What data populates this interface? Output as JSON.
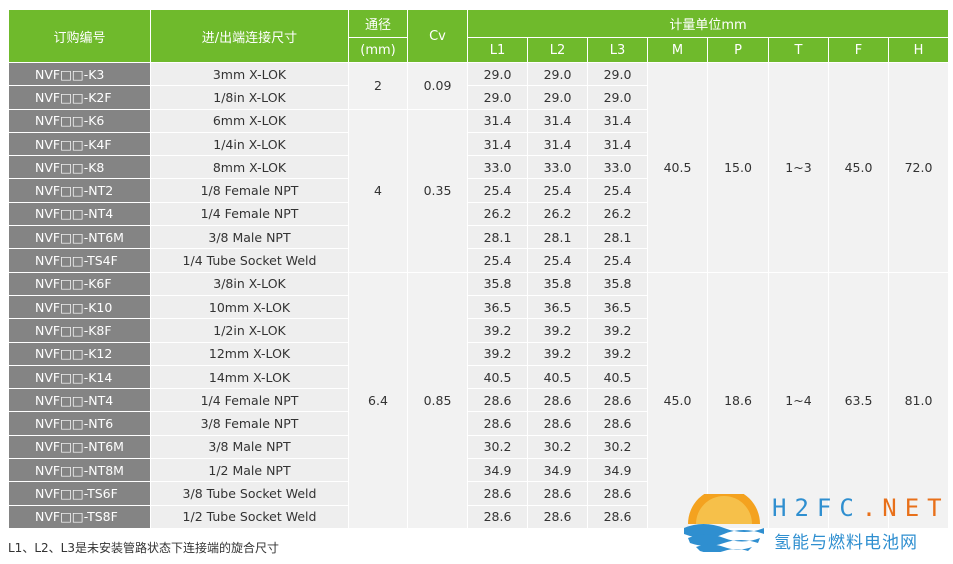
{
  "header": {
    "model_col": "订购编号",
    "conn_col": "进/出端连接尺寸",
    "bore_col": "通径",
    "bore_unit": "(mm)",
    "cv_col": "Cv",
    "dim_group": "计量单位mm",
    "dims": [
      "L1",
      "L2",
      "L3",
      "M",
      "P",
      "T",
      "F",
      "H"
    ]
  },
  "groups": [
    {
      "bore": "2",
      "cv": "0.09",
      "rows": [
        {
          "model": "NVF□□-K3",
          "conn": "3mm X-LOK",
          "l1": "29.0",
          "l2": "29.0",
          "l3": "29.0"
        },
        {
          "model": "NVF□□-K2F",
          "conn": "1/8in X-LOK",
          "l1": "29.0",
          "l2": "29.0",
          "l3": "29.0"
        }
      ]
    },
    {
      "bore": "4",
      "cv": "0.35",
      "rows": [
        {
          "model": "NVF□□-K6",
          "conn": "6mm X-LOK",
          "l1": "31.4",
          "l2": "31.4",
          "l3": "31.4"
        },
        {
          "model": "NVF□□-K4F",
          "conn": "1/4in X-LOK",
          "l1": "31.4",
          "l2": "31.4",
          "l3": "31.4"
        },
        {
          "model": "NVF□□-K8",
          "conn": "8mm X-LOK",
          "l1": "33.0",
          "l2": "33.0",
          "l3": "33.0"
        },
        {
          "model": "NVF□□-NT2",
          "conn": "1/8 Female NPT",
          "l1": "25.4",
          "l2": "25.4",
          "l3": "25.4"
        },
        {
          "model": "NVF□□-NT4",
          "conn": "1/4 Female NPT",
          "l1": "26.2",
          "l2": "26.2",
          "l3": "26.2"
        },
        {
          "model": "NVF□□-NT6M",
          "conn": "3/8 Male NPT",
          "l1": "28.1",
          "l2": "28.1",
          "l3": "28.1"
        },
        {
          "model": "NVF□□-TS4F",
          "conn": "1/4 Tube Socket Weld",
          "l1": "25.4",
          "l2": "25.4",
          "l3": "25.4"
        }
      ]
    },
    {
      "bore": "6.4",
      "cv": "0.85",
      "rows": [
        {
          "model": "NVF□□-K6F",
          "conn": "3/8in X-LOK",
          "l1": "35.8",
          "l2": "35.8",
          "l3": "35.8"
        },
        {
          "model": "NVF□□-K10",
          "conn": "10mm X-LOK",
          "l1": "36.5",
          "l2": "36.5",
          "l3": "36.5"
        },
        {
          "model": "NVF□□-K8F",
          "conn": "1/2in X-LOK",
          "l1": "39.2",
          "l2": "39.2",
          "l3": "39.2"
        },
        {
          "model": "NVF□□-K12",
          "conn": "12mm X-LOK",
          "l1": "39.2",
          "l2": "39.2",
          "l3": "39.2"
        },
        {
          "model": "NVF□□-K14",
          "conn": "14mm X-LOK",
          "l1": "40.5",
          "l2": "40.5",
          "l3": "40.5"
        },
        {
          "model": "NVF□□-NT4",
          "conn": "1/4 Female NPT",
          "l1": "28.6",
          "l2": "28.6",
          "l3": "28.6"
        },
        {
          "model": "NVF□□-NT6",
          "conn": "3/8 Female NPT",
          "l1": "28.6",
          "l2": "28.6",
          "l3": "28.6"
        },
        {
          "model": "NVF□□-NT6M",
          "conn": "3/8 Male NPT",
          "l1": "30.2",
          "l2": "30.2",
          "l3": "30.2"
        },
        {
          "model": "NVF□□-NT8M",
          "conn": "1/2 Male NPT",
          "l1": "34.9",
          "l2": "34.9",
          "l3": "34.9"
        },
        {
          "model": "NVF□□-TS6F",
          "conn": "3/8 Tube Socket Weld",
          "l1": "28.6",
          "l2": "28.6",
          "l3": "28.6"
        },
        {
          "model": "NVF□□-TS8F",
          "conn": "1/2 Tube Socket Weld",
          "l1": "28.6",
          "l2": "28.6",
          "l3": "28.6"
        }
      ]
    }
  ],
  "dim_blocks": [
    {
      "m": "40.5",
      "p": "15.0",
      "t": "1~3",
      "f": "45.0",
      "h": "72.0"
    },
    {
      "m": "45.0",
      "p": "18.6",
      "t": "1~4",
      "f": "63.5",
      "h": "81.0"
    }
  ],
  "footnote": "L1、L2、L3是未安装管路状态下连接端的旋合尺寸",
  "watermark": {
    "brand_main": "H2FC",
    "brand_dot": ".",
    "brand_tld": "NET",
    "brand_sub": "氢能与燃料电池网"
  },
  "colors": {
    "header_green": "#6fba2c",
    "model_gray": "#848484",
    "cell_gray": "#eeeeee",
    "logo_blue": "#2f8fd0",
    "logo_orange": "#e8701a"
  }
}
